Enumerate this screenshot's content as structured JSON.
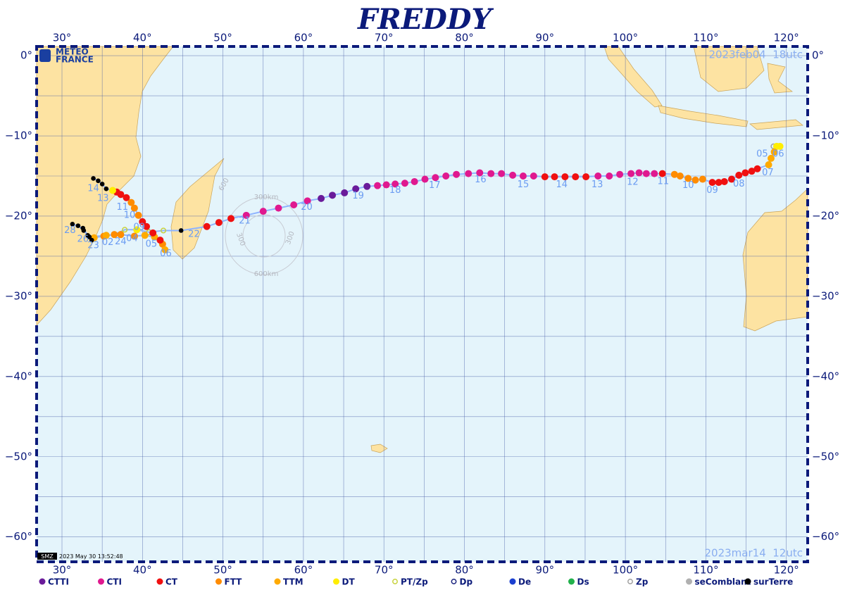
{
  "map": {
    "title": "FREDDY",
    "logo": [
      "METEO",
      "FRANCE"
    ],
    "timestamp": "2023 May 30 13:52:48",
    "stamp_badge": "SMZ",
    "start_label": "2023feb04  18utc",
    "end_label": "2023mar14  12utc",
    "lonlim": [
      26.85,
      122.65
    ],
    "latlim": [
      -63.1,
      1.15
    ],
    "lonticks": [
      {
        "value": 30,
        "label": "30°"
      },
      {
        "value": 40,
        "label": "40°"
      },
      {
        "value": 50,
        "label": "50°"
      },
      {
        "value": 60,
        "label": "60°"
      },
      {
        "value": 70,
        "label": "70°"
      },
      {
        "value": 80,
        "label": "80°"
      },
      {
        "value": 90,
        "label": "90°"
      },
      {
        "value": 100,
        "label": "100°"
      },
      {
        "value": 110,
        "label": "110°"
      },
      {
        "value": 120,
        "label": "120°"
      }
    ],
    "latticks": [
      {
        "value": 0,
        "label": "0°"
      },
      {
        "value": -10,
        "label": "−10°"
      },
      {
        "value": -20,
        "label": "−20°"
      },
      {
        "value": -30,
        "label": "−30°"
      },
      {
        "value": -40,
        "label": "−40°"
      },
      {
        "value": -50,
        "label": "−50°"
      },
      {
        "value": -60,
        "label": "−60°"
      }
    ],
    "grid": true,
    "legend": [
      {
        "name": "CTTI",
        "color": "#6a1b9a",
        "style": "filled"
      },
      {
        "name": "CTI",
        "color": "#e0198f",
        "style": "filled"
      },
      {
        "name": "CT",
        "color": "#f01010",
        "style": "filled"
      },
      {
        "name": "FTT",
        "color": "#ff8c00",
        "style": "filled"
      },
      {
        "name": "TTM",
        "color": "#ffaa00",
        "style": "filled"
      },
      {
        "name": "DT",
        "color": "#ffee00",
        "style": "filled"
      },
      {
        "name": "PT/Zp",
        "color": "#c8d23c",
        "style": "hollow"
      },
      {
        "name": "Dp",
        "color": "#1a237e",
        "style": "hollow"
      },
      {
        "name": "De",
        "color": "#1a3fd0",
        "style": "filled"
      },
      {
        "name": "Ds",
        "color": "#22b14c",
        "style": "filled"
      },
      {
        "name": "Zp",
        "color": "#a0a0a0",
        "style": "hollow"
      },
      {
        "name": "seComblant",
        "color": "#b0b0b0",
        "style": "filled"
      },
      {
        "name": "surTerre",
        "color": "#000000",
        "style": "filled"
      }
    ],
    "track_color": "#8fb4ff",
    "track": {
      "lon": [
        118.4,
        118.8,
        119.2,
        118.5,
        118.1,
        117.8,
        116.4,
        115.7,
        114.9,
        114.1,
        113.2,
        112.3,
        111.6,
        110.8,
        109.6,
        108.7,
        107.8,
        106.8,
        106.1,
        104.6,
        103.6,
        102.6,
        101.7,
        100.7,
        99.3,
        98.0,
        96.6,
        95.1,
        93.8,
        92.5,
        91.2,
        90.0,
        88.6,
        87.3,
        86.0,
        84.6,
        83.3,
        81.9,
        80.5,
        79.0,
        77.7,
        76.4,
        75.1,
        73.8,
        72.6,
        71.4,
        70.3,
        69.2,
        67.9,
        66.5,
        65.1,
        63.6,
        62.2,
        60.5,
        58.8,
        56.9,
        55.0,
        52.9,
        51.0,
        49.5,
        48.0,
        44.8,
        42.6,
        40.8,
        39.3,
        37.8,
        36.5,
        35.2,
        34.0,
        33.7,
        33.2,
        32.7,
        32.0,
        31.3,
        32.6,
        33.4,
        35.5,
        37.3,
        39.0,
        40.3,
        41.5,
        42.5,
        42.8,
        42.2,
        41.3,
        40.5,
        40.0,
        39.5,
        39.0,
        38.6,
        38.0,
        37.3,
        36.8,
        36.3,
        35.5,
        35.0,
        34.5,
        33.9
      ],
      "lat": [
        -11.3,
        -11.3,
        -11.3,
        -12.0,
        -12.8,
        -13.6,
        -14.1,
        -14.4,
        -14.6,
        -14.9,
        -15.4,
        -15.7,
        -15.8,
        -15.8,
        -15.4,
        -15.5,
        -15.3,
        -15.0,
        -14.8,
        -14.7,
        -14.7,
        -14.7,
        -14.6,
        -14.7,
        -14.8,
        -15.0,
        -15.0,
        -15.1,
        -15.1,
        -15.1,
        -15.1,
        -15.1,
        -15.0,
        -15.0,
        -14.9,
        -14.7,
        -14.7,
        -14.6,
        -14.7,
        -14.8,
        -15.0,
        -15.2,
        -15.4,
        -15.7,
        -15.9,
        -16.0,
        -16.1,
        -16.2,
        -16.3,
        -16.6,
        -17.1,
        -17.4,
        -17.8,
        -18.1,
        -18.6,
        -19.0,
        -19.4,
        -19.9,
        -20.3,
        -20.8,
        -21.3,
        -21.8,
        -21.8,
        -22.0,
        -21.7,
        -21.7,
        -22.3,
        -22.5,
        -22.7,
        -23.0,
        -22.4,
        -21.8,
        -21.2,
        -21.0,
        -21.5,
        -22.6,
        -22.4,
        -22.3,
        -22.5,
        -22.4,
        -22.6,
        -23.5,
        -24.2,
        -23.0,
        -22.1,
        -21.3,
        -20.7,
        -19.9,
        -19.0,
        -18.3,
        -17.7,
        -17.3,
        -17.0,
        -16.8,
        -16.6,
        -16.0,
        -15.6,
        -15.3
      ],
      "class": [
        "Zp",
        "DT",
        "DT",
        "TTM",
        "TTM",
        "TTM",
        "CT",
        "CT",
        "CT",
        "CT",
        "CT",
        "CT",
        "CT",
        "CT",
        "FTT",
        "FTT",
        "FTT",
        "FTT",
        "FTT",
        "CT",
        "CTI",
        "CTI",
        "CTI",
        "CTI",
        "CTI",
        "CTI",
        "CTI",
        "CT",
        "CT",
        "CT",
        "CT",
        "CT",
        "CTI",
        "CTI",
        "CTI",
        "CTI",
        "CTI",
        "CTI",
        "CTI",
        "CTI",
        "CTI",
        "CTI",
        "CTI",
        "CTI",
        "CTI",
        "CTI",
        "CTI",
        "CTI",
        "CTTI",
        "CTTI",
        "CTTI",
        "CTTI",
        "CTTI",
        "CTI",
        "CTI",
        "CTI",
        "CTI",
        "CTI",
        "CT",
        "CT",
        "CT",
        "surTerre",
        "PT/Zp",
        "PT/Zp",
        "DT",
        "PT/Zp",
        "FTT",
        "FTT",
        "TTM",
        "surTerre",
        "surTerre",
        "surTerre",
        "surTerre",
        "surTerre",
        "surTerre",
        "surTerre",
        "TTM",
        "FTT",
        "FTT",
        "TTM",
        "TTM",
        "FTT",
        "TTM",
        "CT",
        "CT",
        "CT",
        "CT",
        "FTT",
        "FTT",
        "FTT",
        "CT",
        "CT",
        "CT",
        "DT",
        "surTerre",
        "surTerre",
        "surTerre",
        "surTerre"
      ]
    },
    "day_labels": [
      {
        "text": "05",
        "lon": 117.0,
        "lat": -12.3
      },
      {
        "text": "06",
        "lon": 119.0,
        "lat": -12.3
      },
      {
        "text": "07",
        "lon": 117.7,
        "lat": -14.6
      },
      {
        "text": "08",
        "lon": 114.1,
        "lat": -16.0
      },
      {
        "text": "09",
        "lon": 110.8,
        "lat": -16.8
      },
      {
        "text": "10",
        "lon": 107.8,
        "lat": -16.2
      },
      {
        "text": "11",
        "lon": 104.7,
        "lat": -15.7
      },
      {
        "text": "12",
        "lon": 100.9,
        "lat": -15.8
      },
      {
        "text": "13",
        "lon": 96.5,
        "lat": -16.1
      },
      {
        "text": "14",
        "lon": 92.1,
        "lat": -16.1
      },
      {
        "text": "15",
        "lon": 87.3,
        "lat": -16.1
      },
      {
        "text": "16",
        "lon": 82.0,
        "lat": -15.5
      },
      {
        "text": "17",
        "lon": 76.3,
        "lat": -16.2
      },
      {
        "text": "18",
        "lon": 71.4,
        "lat": -16.8
      },
      {
        "text": "19",
        "lon": 66.8,
        "lat": -17.5
      },
      {
        "text": "20",
        "lon": 60.4,
        "lat": -18.9
      },
      {
        "text": "21",
        "lon": 52.7,
        "lat": -20.6
      },
      {
        "text": "22",
        "lon": 46.4,
        "lat": -22.3
      },
      {
        "text": "23",
        "lon": 33.9,
        "lat": -23.7
      },
      {
        "text": "24",
        "lon": 37.3,
        "lat": -23.2
      },
      {
        "text": "26",
        "lon": 32.6,
        "lat": -22.9
      },
      {
        "text": "28",
        "lon": 31.0,
        "lat": -21.8
      },
      {
        "text": "02",
        "lon": 35.7,
        "lat": -23.3
      },
      {
        "text": "04",
        "lon": 38.7,
        "lat": -22.8
      },
      {
        "text": "05",
        "lon": 41.1,
        "lat": -23.5
      },
      {
        "text": "06",
        "lon": 42.9,
        "lat": -24.7
      },
      {
        "text": "09",
        "lon": 39.6,
        "lat": -21.4
      },
      {
        "text": "10",
        "lon": 38.4,
        "lat": -19.9
      },
      {
        "text": "11",
        "lon": 37.5,
        "lat": -18.9
      },
      {
        "text": "13",
        "lon": 35.1,
        "lat": -17.8
      },
      {
        "text": "14",
        "lon": 33.9,
        "lat": -16.6
      }
    ],
    "ring_labels": [
      "300km",
      "600km",
      "300",
      "300",
      "600"
    ]
  }
}
